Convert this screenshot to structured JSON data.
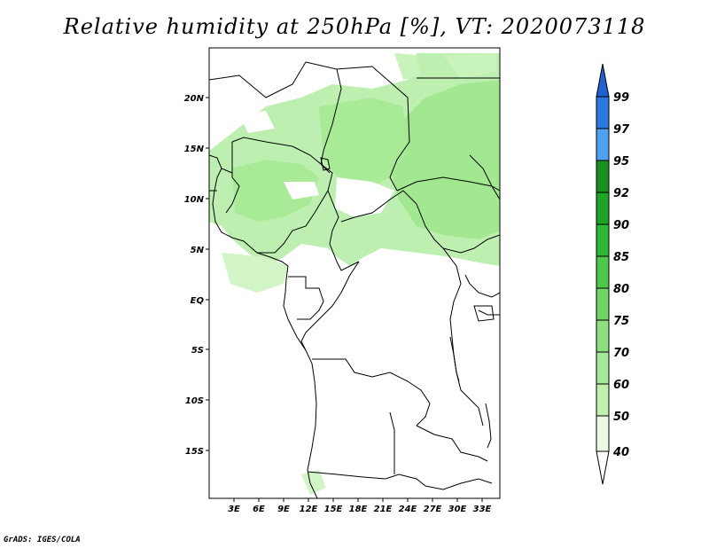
{
  "title": "Relative humidity at 250hPa [%], VT: 2020073118",
  "credit": "GrADS: IGES/COLA",
  "map": {
    "variable": "Relative humidity",
    "level": "250hPa",
    "units": "%",
    "valid_time": "2020073118",
    "lon_ticks": [
      "3E",
      "6E",
      "9E",
      "12E",
      "15E",
      "18E",
      "21E",
      "24E",
      "27E",
      "30E",
      "33E"
    ],
    "lat_ticks": [
      "20N",
      "15N",
      "10N",
      "5N",
      "EQ",
      "5S",
      "10S",
      "15S"
    ]
  },
  "colorbar": {
    "levels": [
      "40",
      "50",
      "60",
      "70",
      "75",
      "80",
      "85",
      "90",
      "92",
      "95",
      "97",
      "99"
    ],
    "colors": [
      "#f0fff0",
      "#d9f7d0",
      "#c0f0b0",
      "#a6e89a",
      "#8ddf80",
      "#6fd466",
      "#4ec84a",
      "#2fb834",
      "#1ea526",
      "#1a8f1e",
      "#4fa0f0",
      "#2a78e0",
      "#1e5fd0"
    ],
    "max_color": "#2060d0",
    "min_color": "#ffffff"
  }
}
